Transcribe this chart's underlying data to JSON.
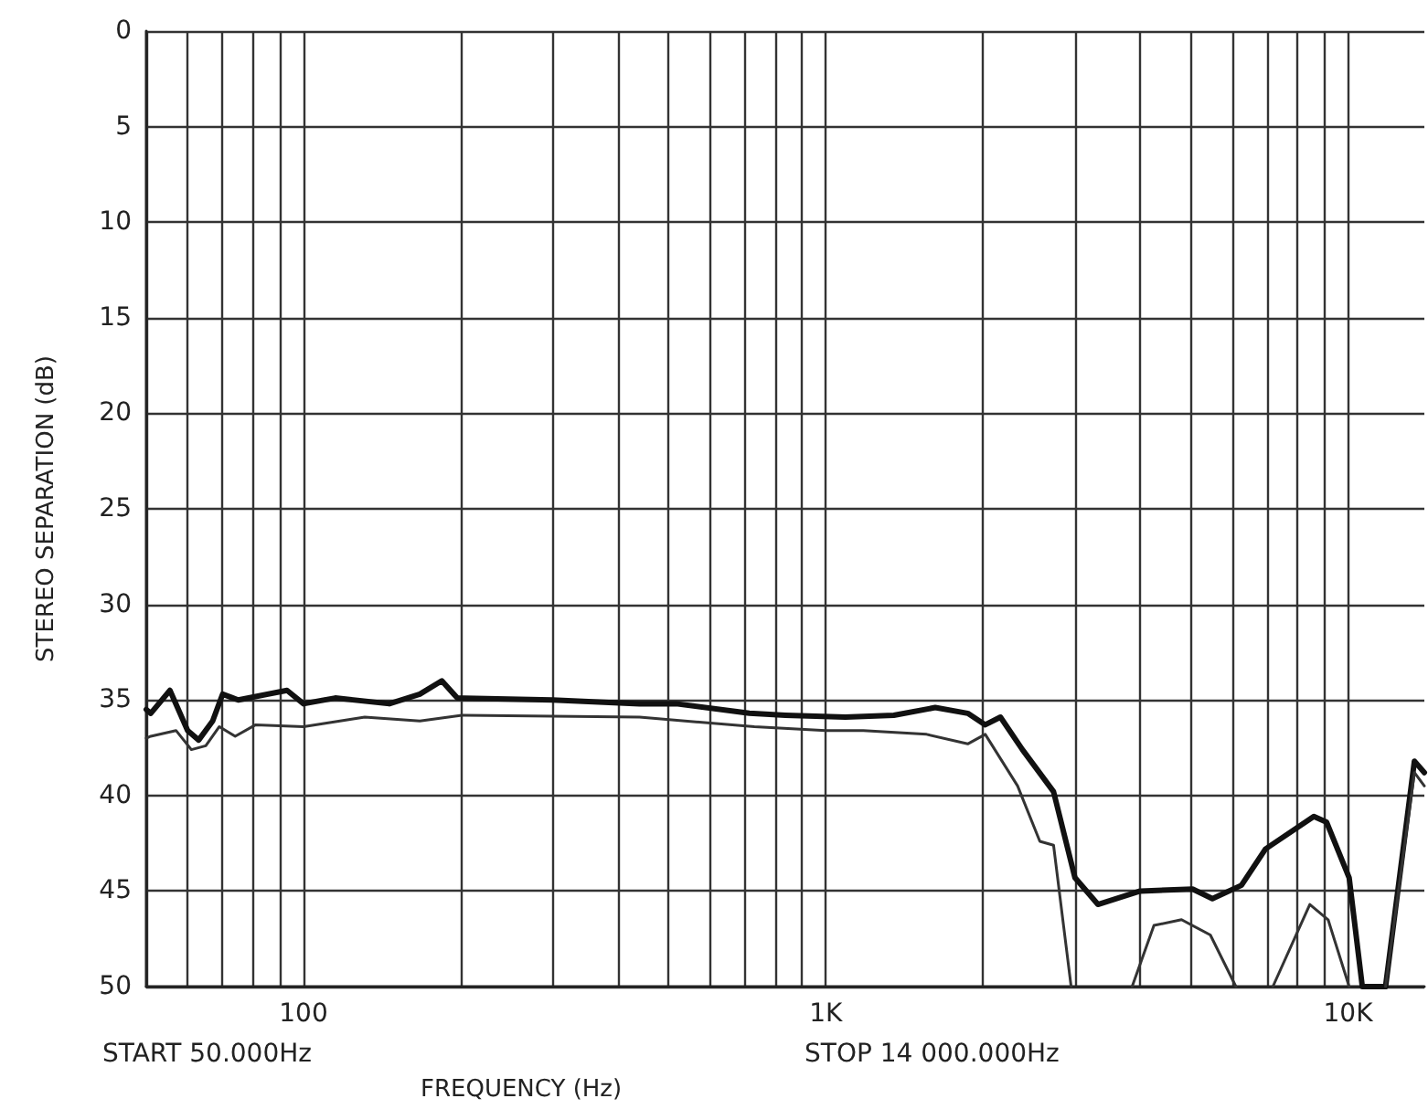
{
  "chart_data": {
    "type": "line",
    "xlabel": "FREQUENCY (Hz)",
    "ylabel": "STEREO SEPARATION (dB)",
    "annotations": [
      "START 50.000Hz",
      "STOP 14 000.000Hz"
    ],
    "log": "x",
    "grid": true,
    "marker": "none",
    "line_style": "solid",
    "xlim": [
      50,
      14000
    ],
    "ylim": [
      50,
      0
    ],
    "xticks": [
      {
        "value": 50,
        "label": null
      },
      {
        "value": 60,
        "label": null
      },
      {
        "value": 70,
        "label": null
      },
      {
        "value": 80,
        "label": null
      },
      {
        "value": 90,
        "label": null
      },
      {
        "value": 100,
        "label": "100"
      },
      {
        "value": 200,
        "label": null
      },
      {
        "value": 300,
        "label": null
      },
      {
        "value": 400,
        "label": null
      },
      {
        "value": 500,
        "label": null
      },
      {
        "value": 600,
        "label": null
      },
      {
        "value": 700,
        "label": null
      },
      {
        "value": 800,
        "label": null
      },
      {
        "value": 900,
        "label": null
      },
      {
        "value": 1000,
        "label": "1K"
      },
      {
        "value": 2000,
        "label": null
      },
      {
        "value": 3000,
        "label": null
      },
      {
        "value": 4000,
        "label": null
      },
      {
        "value": 5000,
        "label": null
      },
      {
        "value": 6000,
        "label": null
      },
      {
        "value": 7000,
        "label": null
      },
      {
        "value": 8000,
        "label": null
      },
      {
        "value": 9000,
        "label": null
      },
      {
        "value": 10000,
        "label": "10K"
      }
    ],
    "yticks": [
      0,
      5,
      10,
      15,
      20,
      25,
      30,
      35,
      40,
      45,
      50
    ],
    "series": [
      {
        "color": "#111111",
        "x": [
          50,
          51,
          55.5,
          60,
          63,
          67,
          70,
          75,
          93,
          100,
          115,
          146,
          167,
          184,
          197,
          300,
          440,
          517,
          714,
          837,
          1090,
          1350,
          1620,
          1870,
          2020,
          2160,
          2380,
          2730,
          3000,
          3320,
          4000,
          5040,
          5500,
          6250,
          6950,
          8600,
          9100,
          10050,
          10650,
          11800,
          13400,
          14000
        ],
        "values": [
          35.5,
          35.7,
          34.5,
          36.6,
          37.1,
          36.1,
          34.7,
          35.0,
          34.5,
          35.2,
          34.9,
          35.2,
          34.7,
          34.0,
          34.9,
          35.0,
          35.2,
          35.2,
          35.7,
          35.8,
          35.9,
          35.8,
          35.4,
          35.7,
          36.3,
          35.9,
          37.6,
          39.8,
          44.3,
          45.7,
          45.0,
          44.9,
          45.4,
          44.7,
          42.8,
          41.1,
          41.4,
          44.3,
          50,
          50,
          38.2,
          38.8
        ]
      },
      {
        "color": "#333333",
        "x": [
          50,
          51,
          57,
          61,
          65,
          69,
          74,
          81,
          100,
          131,
          167,
          201,
          440,
          730,
          1000,
          1180,
          1560,
          1870,
          2020,
          2330,
          2570,
          2730,
          2950,
          3400,
          3860,
          4250,
          4800,
          5450,
          6100,
          6600,
          7180,
          8450,
          9160,
          10050,
          11000,
          11800,
          13400,
          14000
        ],
        "values": [
          37.0,
          36.9,
          36.6,
          37.6,
          37.4,
          36.4,
          36.9,
          36.3,
          36.4,
          35.9,
          36.1,
          35.8,
          35.9,
          36.4,
          36.6,
          36.6,
          36.8,
          37.3,
          36.8,
          39.5,
          42.4,
          42.6,
          50,
          null,
          50,
          46.8,
          46.5,
          47.3,
          50,
          null,
          50,
          45.7,
          46.5,
          50,
          null,
          50,
          38.8,
          39.5
        ]
      }
    ]
  }
}
